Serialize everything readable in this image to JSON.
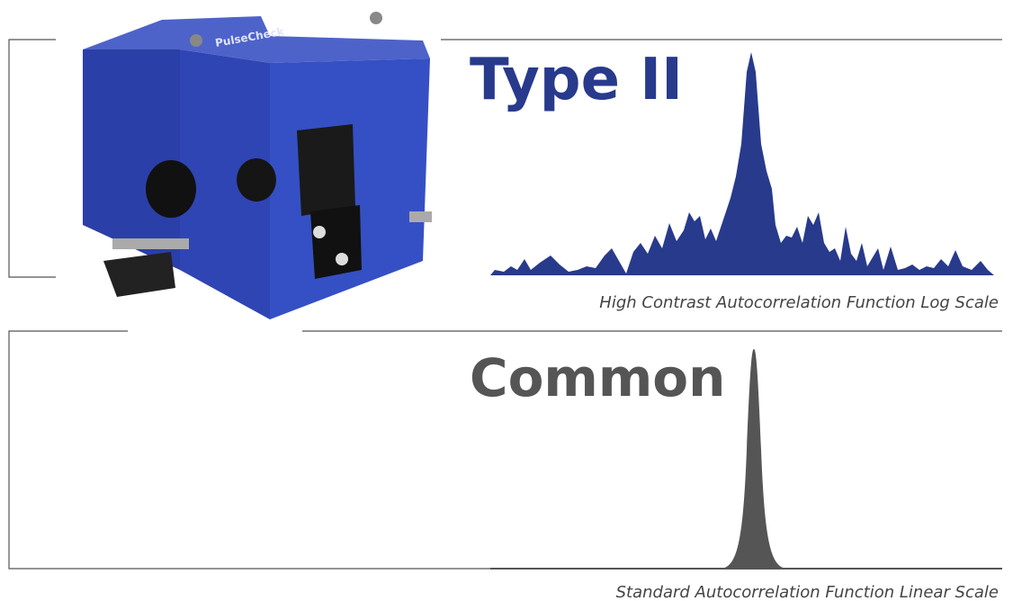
{
  "product": {
    "label": "PulseCheck"
  },
  "panels": [
    {
      "title": "Type II",
      "caption": "High Contrast Autocorrelation Function Log Scale"
    },
    {
      "title": "Common",
      "caption": "Standard Autocorrelation Function Linear Scale"
    }
  ]
}
